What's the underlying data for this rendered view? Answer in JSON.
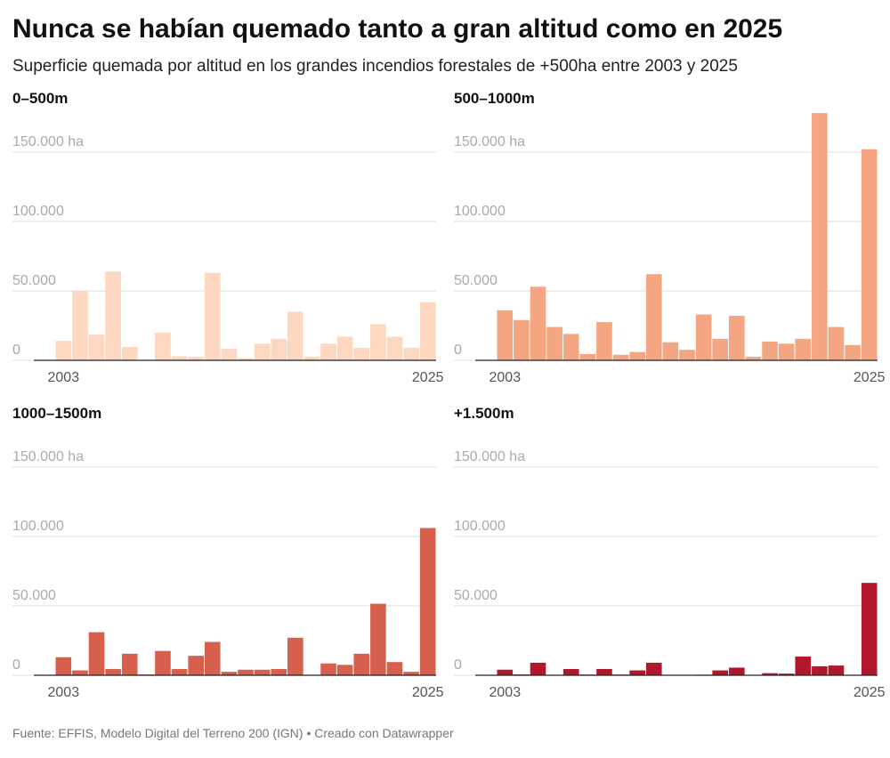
{
  "title": "Nunca se habían quemado tanto a gran altitud como en 2025",
  "subtitle": "Superficie quemada por altitud en los grandes incendios forestales de +500ha entre 2003 y 2025",
  "source": "Fuente: EFFIS, Modelo Digital del Terreno 200 (IGN) • Creado con Datawrapper",
  "chart_data": [
    {
      "type": "bar",
      "title": "0–500m",
      "color": "#fdd7c0",
      "categories": [
        "2003",
        null,
        null,
        null,
        null,
        null,
        null,
        null,
        null,
        null,
        null,
        null,
        null,
        null,
        null,
        null,
        null,
        null,
        null,
        null,
        null,
        null,
        "2025"
      ],
      "values": [
        14000,
        50000,
        18500,
        64000,
        9600,
        0,
        20000,
        3000,
        2500,
        63000,
        8300,
        1500,
        12000,
        15500,
        35000,
        2500,
        12000,
        17000,
        9000,
        26000,
        17000,
        9000,
        42000
      ],
      "ylim": [
        0,
        180000
      ],
      "yticks": [
        0,
        {
          "value": 50000,
          "label": "50.000"
        },
        {
          "value": 100000,
          "label": "100.000"
        },
        {
          "value": 150000,
          "label": "150.000 ha"
        }
      ]
    },
    {
      "type": "bar",
      "title": "500–1000m",
      "color": "#f4a582",
      "categories": [
        "2003",
        null,
        null,
        null,
        null,
        null,
        null,
        null,
        null,
        null,
        null,
        null,
        null,
        null,
        null,
        null,
        null,
        null,
        null,
        null,
        null,
        null,
        "2025"
      ],
      "values": [
        36000,
        29000,
        53000,
        24000,
        19000,
        4500,
        27500,
        4000,
        6000,
        62000,
        13000,
        7500,
        33000,
        15500,
        32000,
        2500,
        13500,
        12000,
        15500,
        178000,
        24000,
        11000,
        152000
      ],
      "ylim": [
        0,
        180000
      ],
      "yticks": [
        0,
        {
          "value": 50000,
          "label": "50.000"
        },
        {
          "value": 100000,
          "label": "100.000"
        },
        {
          "value": 150000,
          "label": "150.000 ha"
        }
      ]
    },
    {
      "type": "bar",
      "title": "1000–1500m",
      "color": "#d6604d",
      "categories": [
        "2003",
        null,
        null,
        null,
        null,
        null,
        null,
        null,
        null,
        null,
        null,
        null,
        null,
        null,
        null,
        null,
        null,
        null,
        null,
        null,
        null,
        null,
        "2025"
      ],
      "values": [
        13000,
        3500,
        31000,
        4500,
        15500,
        600,
        17500,
        4500,
        14000,
        24000,
        2500,
        4000,
        4000,
        4500,
        27000,
        0,
        8500,
        7500,
        15500,
        51500,
        9500,
        2500,
        106000
      ],
      "ylim": [
        0,
        180000
      ],
      "yticks": [
        0,
        {
          "value": 50000,
          "label": "50.000"
        },
        {
          "value": 100000,
          "label": "100.000"
        },
        {
          "value": 150000,
          "label": "150.000 ha"
        }
      ]
    },
    {
      "type": "bar",
      "title": "+1.500m",
      "color": "#b2182b",
      "categories": [
        "2003",
        null,
        null,
        null,
        null,
        null,
        null,
        null,
        null,
        null,
        null,
        null,
        null,
        null,
        null,
        null,
        null,
        null,
        null,
        null,
        null,
        null,
        "2025"
      ],
      "values": [
        4000,
        600,
        9000,
        0,
        4500,
        500,
        4500,
        500,
        3500,
        9000,
        0,
        0,
        400,
        3500,
        5500,
        0,
        1500,
        1200,
        13500,
        6500,
        7000,
        0,
        66500
      ],
      "ylim": [
        0,
        180000
      ],
      "yticks": [
        0,
        {
          "value": 50000,
          "label": "50.000"
        },
        {
          "value": 100000,
          "label": "100.000"
        },
        {
          "value": 150000,
          "label": "150.000 ha"
        }
      ]
    }
  ]
}
